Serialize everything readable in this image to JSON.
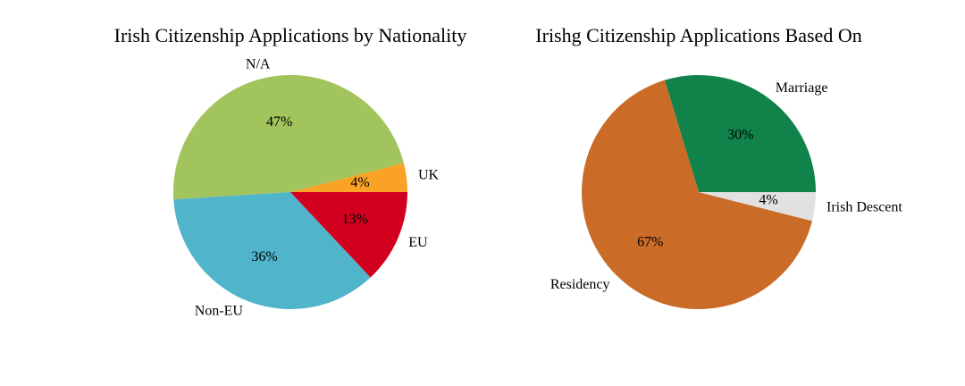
{
  "chart_data": [
    {
      "type": "pie",
      "title": "Irish Citizenship Applications by Nationality",
      "categories": [
        "UK",
        "N/A",
        "Non-EU",
        "EU"
      ],
      "values": [
        4,
        47,
        36,
        13
      ],
      "pct_labels": [
        "4%",
        "47%",
        "36%",
        "13%"
      ],
      "colors": [
        "#f9a226",
        "#a1c45c",
        "#50b4cb",
        "#d1001f"
      ],
      "start_angle_deg": 0,
      "direction": "counterclockwise"
    },
    {
      "type": "pie",
      "title": "Irishg Citizenship Applications Based On",
      "categories": [
        "Marriage",
        "Residency",
        "Irish Descent"
      ],
      "values": [
        30,
        67,
        4
      ],
      "pct_labels": [
        "30%",
        "67%",
        "4%"
      ],
      "colors": [
        "#11834a",
        "#ca6b28",
        "#e1e1e1"
      ],
      "start_angle_deg": 0,
      "direction": "counterclockwise"
    }
  ]
}
